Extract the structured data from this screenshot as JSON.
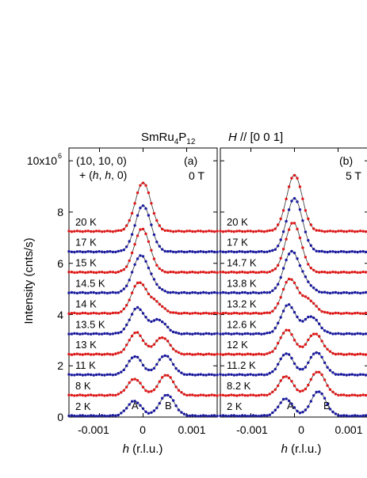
{
  "figure": {
    "material": "SmRu",
    "material_sub1": "4",
    "material_mid": "P",
    "material_sub2": "12",
    "field_dir_italic": "H",
    "field_dir_rest": " // [0 0 1]"
  },
  "axes": {
    "ylabel": "Intensity  (cnts/s)",
    "ytick_labels": [
      "0",
      "2",
      "4",
      "6",
      "8",
      "10x10"
    ],
    "ytick_exponent": "6",
    "xlabel_italic": "h",
    "xlabel_rest": "  (r.l.u.)",
    "xtick_labels": [
      "-0.001",
      "0",
      "0.001"
    ]
  },
  "chart_data": [
    {
      "type": "line",
      "panel": "(a)",
      "field": "0 T",
      "reflection_line1": "(10, 10, 0)",
      "reflection_line2_pre": "+ (",
      "reflection_line2_h1": "h",
      "reflection_line2_mid": ", ",
      "reflection_line2_h2": "h",
      "reflection_line2_post": ", 0)",
      "peak_labels": [
        "A",
        "B"
      ],
      "x_range": [
        -0.0017,
        0.0017
      ],
      "y_range": [
        0,
        10500000
      ],
      "colors": [
        "#1a1aa0",
        "#e01818"
      ],
      "temps": [
        "2 K",
        "8 K",
        "11 K",
        "13 K",
        "13.5 K",
        "14 K",
        "14.5 K",
        "15 K",
        "17 K",
        "20 K"
      ],
      "offsets": [
        0,
        800000,
        1600000,
        2400000,
        3200000,
        4000000,
        4800000,
        5600000,
        6400000,
        7200000
      ],
      "split_fraction": [
        1.0,
        0.97,
        0.92,
        0.8,
        0.65,
        0.5,
        0.35,
        0.15,
        0,
        0
      ],
      "peak_height_top": 1900000
    },
    {
      "type": "line",
      "panel": "(b)",
      "field": "5 T",
      "peak_labels": [
        "A",
        "B"
      ],
      "x_range": [
        -0.0017,
        0.0017
      ],
      "y_range": [
        0,
        10500000
      ],
      "colors": [
        "#1a1aa0",
        "#e01818"
      ],
      "temps": [
        "2 K",
        "8.2 K",
        "11.2 K",
        "12 K",
        "12.6 K",
        "13.2 K",
        "13.8 K",
        "14.7 K",
        "17 K",
        "20 K"
      ],
      "offsets": [
        0,
        800000,
        1600000,
        2400000,
        3200000,
        4000000,
        4800000,
        5600000,
        6400000,
        7200000
      ],
      "split_fraction": [
        1.0,
        0.97,
        0.92,
        0.85,
        0.7,
        0.55,
        0.4,
        0.2,
        0,
        0
      ],
      "peak_height_top": 2200000
    }
  ]
}
